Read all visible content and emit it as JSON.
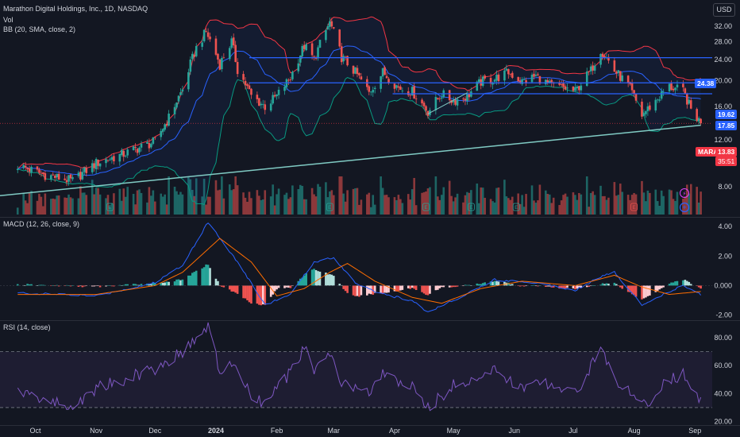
{
  "legend": {
    "symbol_title": "Marathon Digital Holdings, Inc., 1D, NASDAQ",
    "volume_label": "Vol",
    "bb_label": "BB (20, SMA, close, 2)",
    "macd_label": "MACD (12, 26, close, 9)",
    "rsi_label": "RSI (14, close)"
  },
  "currency_button": "USD",
  "ticker_tag": "MARA",
  "last_price": "13.83",
  "countdown": "35:51",
  "horizontal_levels": [
    "24.38",
    "19.62",
    "17.85"
  ],
  "colors": {
    "background": "#131722",
    "up": "#26a69a",
    "down": "#ef5350",
    "bb_basis": "#2962ff",
    "bb_upper": "#f23645",
    "bb_lower": "#089981",
    "level_line": "#2962ff",
    "trendline": "#80cbc4",
    "macd_line": "#2962ff",
    "signal_line": "#ff6d00",
    "rsi_line": "#7e57c2",
    "rsi_band": "#7e57c2",
    "price_tag": "#f23645"
  },
  "icons": [
    "lightning-icon",
    "plus-circle-icon",
    "earnings-e-icon"
  ],
  "chart_data": [
    {
      "type": "candlestick",
      "title": "Marathon Digital Holdings, Inc., 1D, NASDAQ",
      "y_scale": "log",
      "ylim": [
        6.2,
        38
      ],
      "y_ticks": [
        "32.00",
        "28.00",
        "24.00",
        "20.00",
        "16.00",
        "12.00",
        "8.00"
      ],
      "x_ticks": [
        "Oct",
        "Nov",
        "Dec",
        "2024",
        "Feb",
        "Mar",
        "Apr",
        "May",
        "Jun",
        "Jul",
        "Aug",
        "Sep"
      ],
      "close_path": [
        [
          "2023-09-22",
          9.6
        ],
        [
          "2023-10-05",
          8.9
        ],
        [
          "2023-10-20",
          8.4
        ],
        [
          "2023-11-01",
          9.8
        ],
        [
          "2023-11-15",
          10.6
        ],
        [
          "2023-12-01",
          11.8
        ],
        [
          "2023-12-08",
          14.5
        ],
        [
          "2023-12-15",
          18.5
        ],
        [
          "2023-12-22",
          26.5
        ],
        [
          "2023-12-27",
          30.5
        ],
        [
          "2024-01-03",
          23.0
        ],
        [
          "2024-01-09",
          28.0
        ],
        [
          "2024-01-12",
          22.0
        ],
        [
          "2024-01-19",
          17.5
        ],
        [
          "2024-01-26",
          16.0
        ],
        [
          "2024-02-01",
          17.5
        ],
        [
          "2024-02-08",
          20.5
        ],
        [
          "2024-02-15",
          27.0
        ],
        [
          "2024-02-20",
          24.0
        ],
        [
          "2024-02-28",
          33.0
        ],
        [
          "2024-03-05",
          24.5
        ],
        [
          "2024-03-12",
          21.5
        ],
        [
          "2024-03-19",
          18.0
        ],
        [
          "2024-03-26",
          21.5
        ],
        [
          "2024-04-03",
          18.8
        ],
        [
          "2024-04-10",
          18.2
        ],
        [
          "2024-04-18",
          15.3
        ],
        [
          "2024-04-25",
          17.8
        ],
        [
          "2024-05-01",
          16.8
        ],
        [
          "2024-05-08",
          17.5
        ],
        [
          "2024-05-15",
          19.8
        ],
        [
          "2024-05-22",
          20.3
        ],
        [
          "2024-05-29",
          21.5
        ],
        [
          "2024-06-05",
          19.8
        ],
        [
          "2024-06-12",
          20.8
        ],
        [
          "2024-06-19",
          19.2
        ],
        [
          "2024-06-26",
          18.8
        ],
        [
          "2024-07-02",
          18.2
        ],
        [
          "2024-07-10",
          21.8
        ],
        [
          "2024-07-15",
          26.2
        ],
        [
          "2024-07-22",
          21.8
        ],
        [
          "2024-07-29",
          19.2
        ],
        [
          "2024-08-05",
          14.8
        ],
        [
          "2024-08-12",
          16.8
        ],
        [
          "2024-08-19",
          19.0
        ],
        [
          "2024-08-26",
          18.2
        ],
        [
          "2024-08-30",
          15.6
        ],
        [
          "2024-09-04",
          13.83
        ]
      ],
      "horizontal_levels": [
        24.38,
        19.62,
        17.85
      ],
      "last": 13.83
    },
    {
      "type": "bar",
      "title": "Vol"
    },
    {
      "type": "line",
      "title": "MACD (12, 26, close, 9)",
      "ylim": [
        -2.4,
        4.6
      ],
      "y_ticks": [
        "4.00",
        "2.00",
        "0.000",
        "-2.00"
      ],
      "series": [
        {
          "name": "MACD",
          "points": [
            [
              "2023-09-22",
              -0.5
            ],
            [
              "2023-11-01",
              -0.7
            ],
            [
              "2023-12-01",
              0.2
            ],
            [
              "2023-12-15",
              1.4
            ],
            [
              "2023-12-28",
              4.3
            ],
            [
              "2024-01-12",
              1.6
            ],
            [
              "2024-01-26",
              -1.3
            ],
            [
              "2024-02-08",
              -0.6
            ],
            [
              "2024-02-20",
              1.6
            ],
            [
              "2024-03-01",
              1.9
            ],
            [
              "2024-03-12",
              0.2
            ],
            [
              "2024-03-26",
              -0.6
            ],
            [
              "2024-04-10",
              -1.0
            ],
            [
              "2024-04-18",
              -1.8
            ],
            [
              "2024-05-01",
              -1.0
            ],
            [
              "2024-05-22",
              0.4
            ],
            [
              "2024-06-12",
              0.2
            ],
            [
              "2024-07-02",
              -0.3
            ],
            [
              "2024-07-15",
              0.6
            ],
            [
              "2024-07-22",
              0.9
            ],
            [
              "2024-08-05",
              -1.3
            ],
            [
              "2024-08-19",
              -0.4
            ],
            [
              "2024-08-26",
              0.0
            ],
            [
              "2024-09-04",
              -0.6
            ]
          ]
        },
        {
          "name": "Signal",
          "points": [
            [
              "2023-09-22",
              -0.6
            ],
            [
              "2023-11-01",
              -0.6
            ],
            [
              "2023-12-01",
              0.0
            ],
            [
              "2023-12-15",
              0.9
            ],
            [
              "2024-01-03",
              3.2
            ],
            [
              "2024-01-19",
              1.6
            ],
            [
              "2024-02-01",
              -0.7
            ],
            [
              "2024-02-15",
              -0.2
            ],
            [
              "2024-02-28",
              0.9
            ],
            [
              "2024-03-08",
              1.5
            ],
            [
              "2024-03-22",
              0.3
            ],
            [
              "2024-04-10",
              -0.8
            ],
            [
              "2024-04-25",
              -1.2
            ],
            [
              "2024-05-15",
              -0.2
            ],
            [
              "2024-06-05",
              0.3
            ],
            [
              "2024-07-02",
              0.0
            ],
            [
              "2024-07-22",
              0.7
            ],
            [
              "2024-08-05",
              -0.1
            ],
            [
              "2024-08-19",
              -0.6
            ],
            [
              "2024-09-04",
              -0.4
            ]
          ]
        }
      ]
    },
    {
      "type": "line",
      "title": "RSI (14, close)",
      "ylim": [
        18,
        92
      ],
      "y_ticks": [
        "80.00",
        "60.00",
        "40.00",
        "20.00"
      ],
      "bands": [
        70,
        30
      ],
      "series": [
        {
          "name": "RSI",
          "points": [
            [
              "2023-09-22",
              42
            ],
            [
              "2023-10-05",
              36
            ],
            [
              "2023-10-20",
              30
            ],
            [
              "2023-11-01",
              44
            ],
            [
              "2023-11-15",
              50
            ],
            [
              "2023-12-01",
              58
            ],
            [
              "2023-12-15",
              70
            ],
            [
              "2023-12-28",
              88
            ],
            [
              "2024-01-03",
              55
            ],
            [
              "2024-01-09",
              62
            ],
            [
              "2024-01-19",
              38
            ],
            [
              "2024-01-26",
              33
            ],
            [
              "2024-02-08",
              55
            ],
            [
              "2024-02-15",
              72
            ],
            [
              "2024-02-20",
              58
            ],
            [
              "2024-02-28",
              68
            ],
            [
              "2024-03-05",
              48
            ],
            [
              "2024-03-19",
              40
            ],
            [
              "2024-03-26",
              54
            ],
            [
              "2024-04-10",
              44
            ],
            [
              "2024-04-18",
              30
            ],
            [
              "2024-05-01",
              46
            ],
            [
              "2024-05-22",
              56
            ],
            [
              "2024-06-05",
              44
            ],
            [
              "2024-06-19",
              48
            ],
            [
              "2024-07-02",
              40
            ],
            [
              "2024-07-15",
              72
            ],
            [
              "2024-07-22",
              52
            ],
            [
              "2024-08-05",
              30
            ],
            [
              "2024-08-19",
              50
            ],
            [
              "2024-08-26",
              54
            ],
            [
              "2024-09-04",
              33
            ]
          ]
        }
      ]
    }
  ]
}
